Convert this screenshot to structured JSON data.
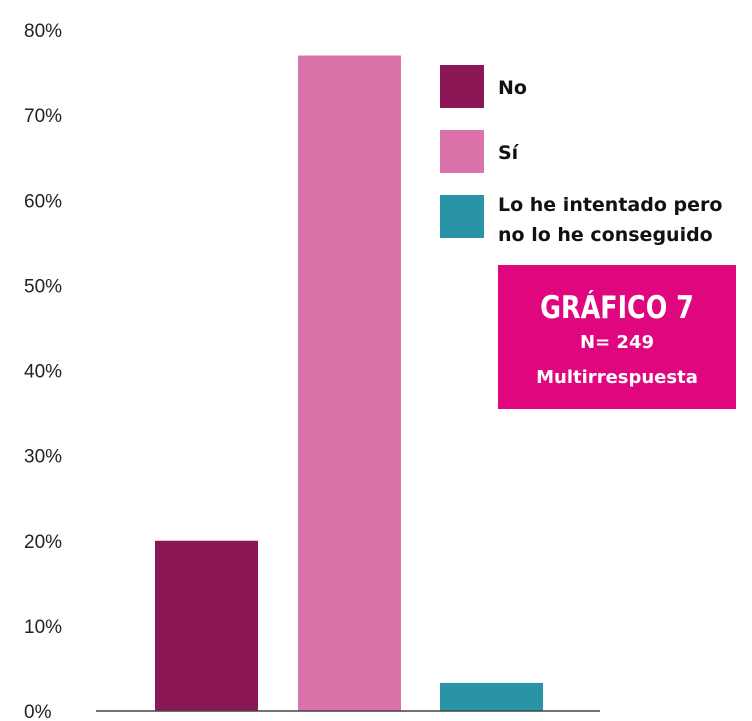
{
  "chart_data": {
    "type": "bar",
    "categories": [
      "No",
      "Sí",
      "Lo he intentado pero no lo he conseguido"
    ],
    "values": [
      20,
      77,
      3.3
    ],
    "colors": [
      "#8B1757",
      "#DC72AA",
      "#2894A5"
    ],
    "ylim": [
      0,
      80
    ],
    "yticks": [
      "0%",
      "10%",
      "20%",
      "30%",
      "40%",
      "50%",
      "60%",
      "70%",
      "80%"
    ],
    "grid": false,
    "legend": {
      "placement": "top-right",
      "entries": [
        {
          "lines": [
            "No"
          ],
          "color": "#8B1757"
        },
        {
          "lines": [
            "Sí"
          ],
          "color": "#DC72AA"
        },
        {
          "lines": [
            "Lo he intentado pero",
            "no lo he conseguido"
          ],
          "color": "#2894A5"
        }
      ]
    }
  },
  "info_box": {
    "title": "GRÁFICO 7",
    "sample": "N= 249",
    "note": "Multirrespuesta",
    "color": "#E0067E"
  }
}
